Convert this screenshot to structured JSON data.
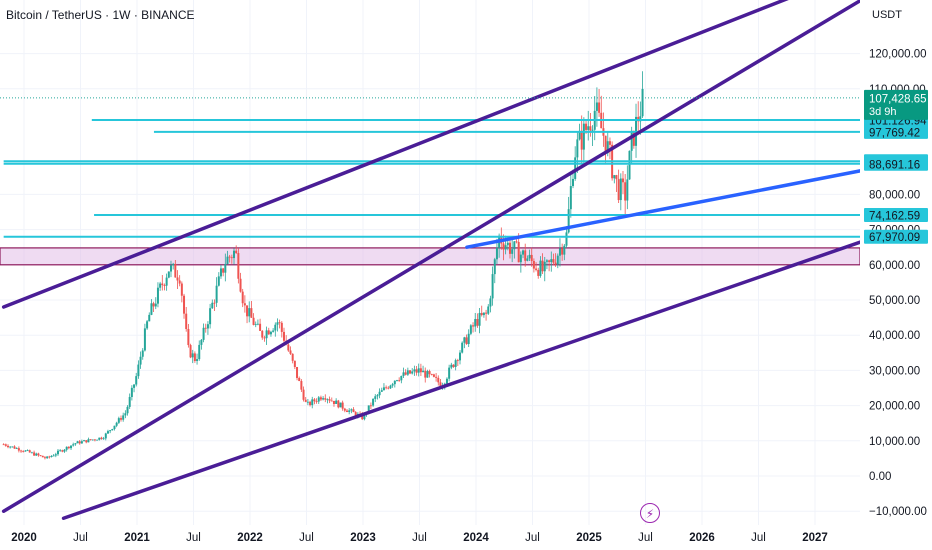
{
  "header": {
    "symbol_title": "Bitcoin / TetherUS · 1W · BINANCE",
    "currency": "USDT"
  },
  "timer_label": "3d 9h",
  "lightning_icon": "lightning-icon",
  "colors": {
    "up": "#26a69a",
    "down": "#ef5350",
    "channel": "#4a1d96",
    "level": "#26c6da",
    "trend": "#2962ff",
    "zone_fill": "#e1bee7",
    "zone_border": "#8e1a5c",
    "price_tag": "#089981"
  },
  "chart_data": {
    "type": "candlestick",
    "title": "Bitcoin / TetherUS · 1W · BINANCE",
    "y_axis": {
      "ticks": [
        -10000,
        0,
        10000,
        20000,
        30000,
        40000,
        50000,
        60000,
        70000,
        80000,
        110000,
        120000
      ],
      "tick_labels": [
        "−10,000.00",
        "0.00",
        "10,000.00",
        "20,000.00",
        "30,000.00",
        "40,000.00",
        "50,000.00",
        "60,000.00",
        "70,000.00",
        "80,000.00",
        "110,000.00",
        "120,000.00"
      ],
      "range": [
        -12000,
        133000
      ]
    },
    "x_axis": {
      "ticks": [
        2020.0,
        2020.5,
        2021.0,
        2021.5,
        2022.0,
        2022.5,
        2023.0,
        2023.5,
        2024.0,
        2024.5,
        2025.0,
        2025.5,
        2026.0,
        2026.5,
        2027.0
      ],
      "tick_labels": [
        "2020",
        "Jul",
        "2021",
        "Jul",
        "2022",
        "Jul",
        "2023",
        "Jul",
        "2024",
        "Jul",
        "2025",
        "Jul",
        "2026",
        "Jul",
        "2027"
      ],
      "range": [
        2019.82,
        2027.45
      ]
    },
    "current_price": 107428.65,
    "current_price_label": "107,428.65",
    "price_labels": [
      {
        "value": 101126.94,
        "label": "101,126.94"
      },
      {
        "value": 97769.42,
        "label": "97,769.42"
      },
      {
        "value": 89405.68,
        "label": "89,405.68"
      },
      {
        "value": 88691.16,
        "label": "88,691.16"
      },
      {
        "value": 74162.59,
        "label": "74,162.59"
      },
      {
        "value": 67970.09,
        "label": "67,970.09"
      }
    ],
    "horizontal_levels": [
      {
        "y": 101126.94,
        "x_start": 2020.6
      },
      {
        "y": 97769.42,
        "x_start": 2021.15
      },
      {
        "y": 89405.68,
        "x_start": 2019.82
      },
      {
        "y": 88691.16,
        "x_start": 2019.82
      },
      {
        "y": 74162.59,
        "x_start": 2020.62
      },
      {
        "y": 67970.09,
        "x_start": 2019.82
      }
    ],
    "support_zone": {
      "y_low": 60000,
      "y_high": 64800
    },
    "channel_lines": [
      {
        "x1": 2019.82,
        "y1": -10000,
        "x2": 2027.45,
        "y2": 136000
      },
      {
        "x1": 2019.82,
        "y1": 6000,
        "x2": 2027.45,
        "y2": 146000
      }
    ],
    "channel_upper_top": {
      "x1": 2019.82,
      "y1": 48000,
      "x2": 2027.5,
      "y2": 145000
    },
    "channel_lower": {
      "x1": 2020.35,
      "y1": -12000,
      "x2": 2027.45,
      "y2": 67000
    },
    "trendline": {
      "x1": 2023.92,
      "y1": 65000,
      "x2": 2027.45,
      "y2": 87000
    },
    "anchors": [
      [
        2019.82,
        9000
      ],
      [
        2020.0,
        7200
      ],
      [
        2020.2,
        5000
      ],
      [
        2020.45,
        9300
      ],
      [
        2020.7,
        11000
      ],
      [
        2020.9,
        18000
      ],
      [
        2021.0,
        29000
      ],
      [
        2021.1,
        45000
      ],
      [
        2021.28,
        59000
      ],
      [
        2021.38,
        57000
      ],
      [
        2021.45,
        36000
      ],
      [
        2021.52,
        33000
      ],
      [
        2021.65,
        47000
      ],
      [
        2021.78,
        61000
      ],
      [
        2021.87,
        64000
      ],
      [
        2021.95,
        48000
      ],
      [
        2022.1,
        40000
      ],
      [
        2022.25,
        44000
      ],
      [
        2022.4,
        30000
      ],
      [
        2022.5,
        20000
      ],
      [
        2022.65,
        23000
      ],
      [
        2022.85,
        19000
      ],
      [
        2023.0,
        16500
      ],
      [
        2023.1,
        22000
      ],
      [
        2023.3,
        28000
      ],
      [
        2023.5,
        30000
      ],
      [
        2023.7,
        26000
      ],
      [
        2023.85,
        35000
      ],
      [
        2024.0,
        44000
      ],
      [
        2024.1,
        46000
      ],
      [
        2024.2,
        68000
      ],
      [
        2024.3,
        65000
      ],
      [
        2024.45,
        62000
      ],
      [
        2024.6,
        58000
      ],
      [
        2024.7,
        62000
      ],
      [
        2024.8,
        68000
      ],
      [
        2024.87,
        92000
      ],
      [
        2024.95,
        97000
      ],
      [
        2025.05,
        104000
      ],
      [
        2025.15,
        95000
      ],
      [
        2025.25,
        82000
      ],
      [
        2025.32,
        80000
      ],
      [
        2025.38,
        95000
      ],
      [
        2025.45,
        104000
      ],
      [
        2025.49,
        107428.65
      ]
    ]
  }
}
